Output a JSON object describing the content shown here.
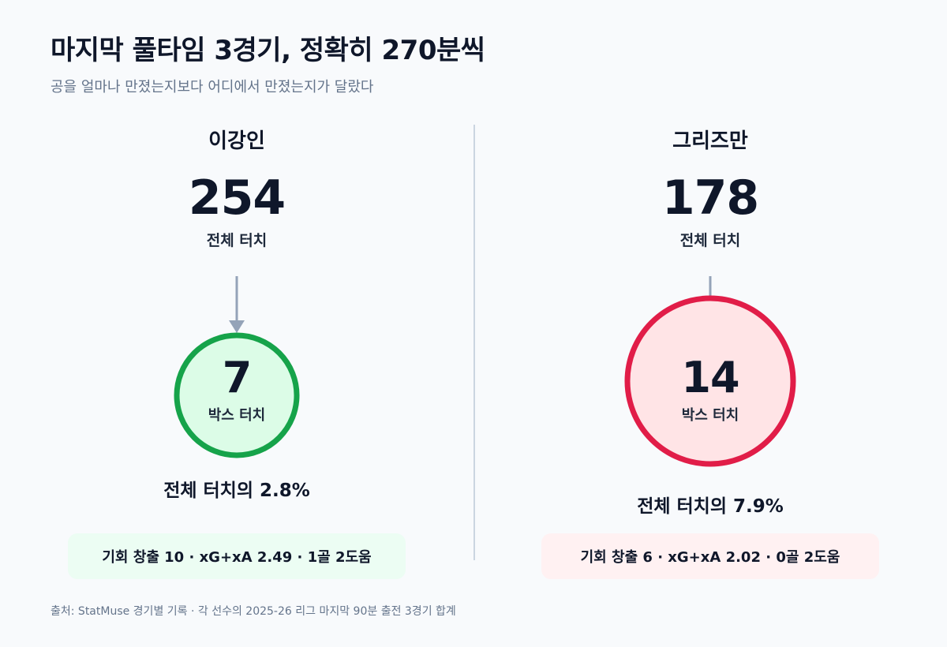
{
  "header": {
    "title": "마지막 풀타임 3경기, 정확히 270분씩",
    "subtitle": "공을 얼마나 만졌는지보다 어디에서 만졌는지가 달랐다"
  },
  "chart_data": [
    {
      "type": "bubble-comparison",
      "player": "이강인",
      "total_touches": 254,
      "total_label": "전체 터치",
      "box_touches": 7,
      "box_label": "박스 터치",
      "box_share_pct": 2.8,
      "percent_text": "전체 터치의 2.8%",
      "summary": "기회 창출 10 · xG+xA 2.49 · 1골 2도움",
      "colors": {
        "stroke": "#16a34a",
        "fill": "#dcfce7"
      }
    },
    {
      "type": "bubble-comparison",
      "player": "그리즈만",
      "total_touches": 178,
      "total_label": "전체 터치",
      "box_touches": 14,
      "box_label": "박스 터치",
      "box_share_pct": 7.9,
      "percent_text": "전체 터치의 7.9%",
      "summary": "기회 창출 6 · xG+xA 2.02 · 0골 2도움",
      "colors": {
        "stroke": "#e11d48",
        "fill": "#ffe4e6"
      }
    }
  ],
  "connector_color": "#94a3b8",
  "footer": {
    "source": "출처: StatMuse 경기별 기록 · 각 선수의 2025-26 리그 마지막 90분 출전 3경기 합계"
  }
}
